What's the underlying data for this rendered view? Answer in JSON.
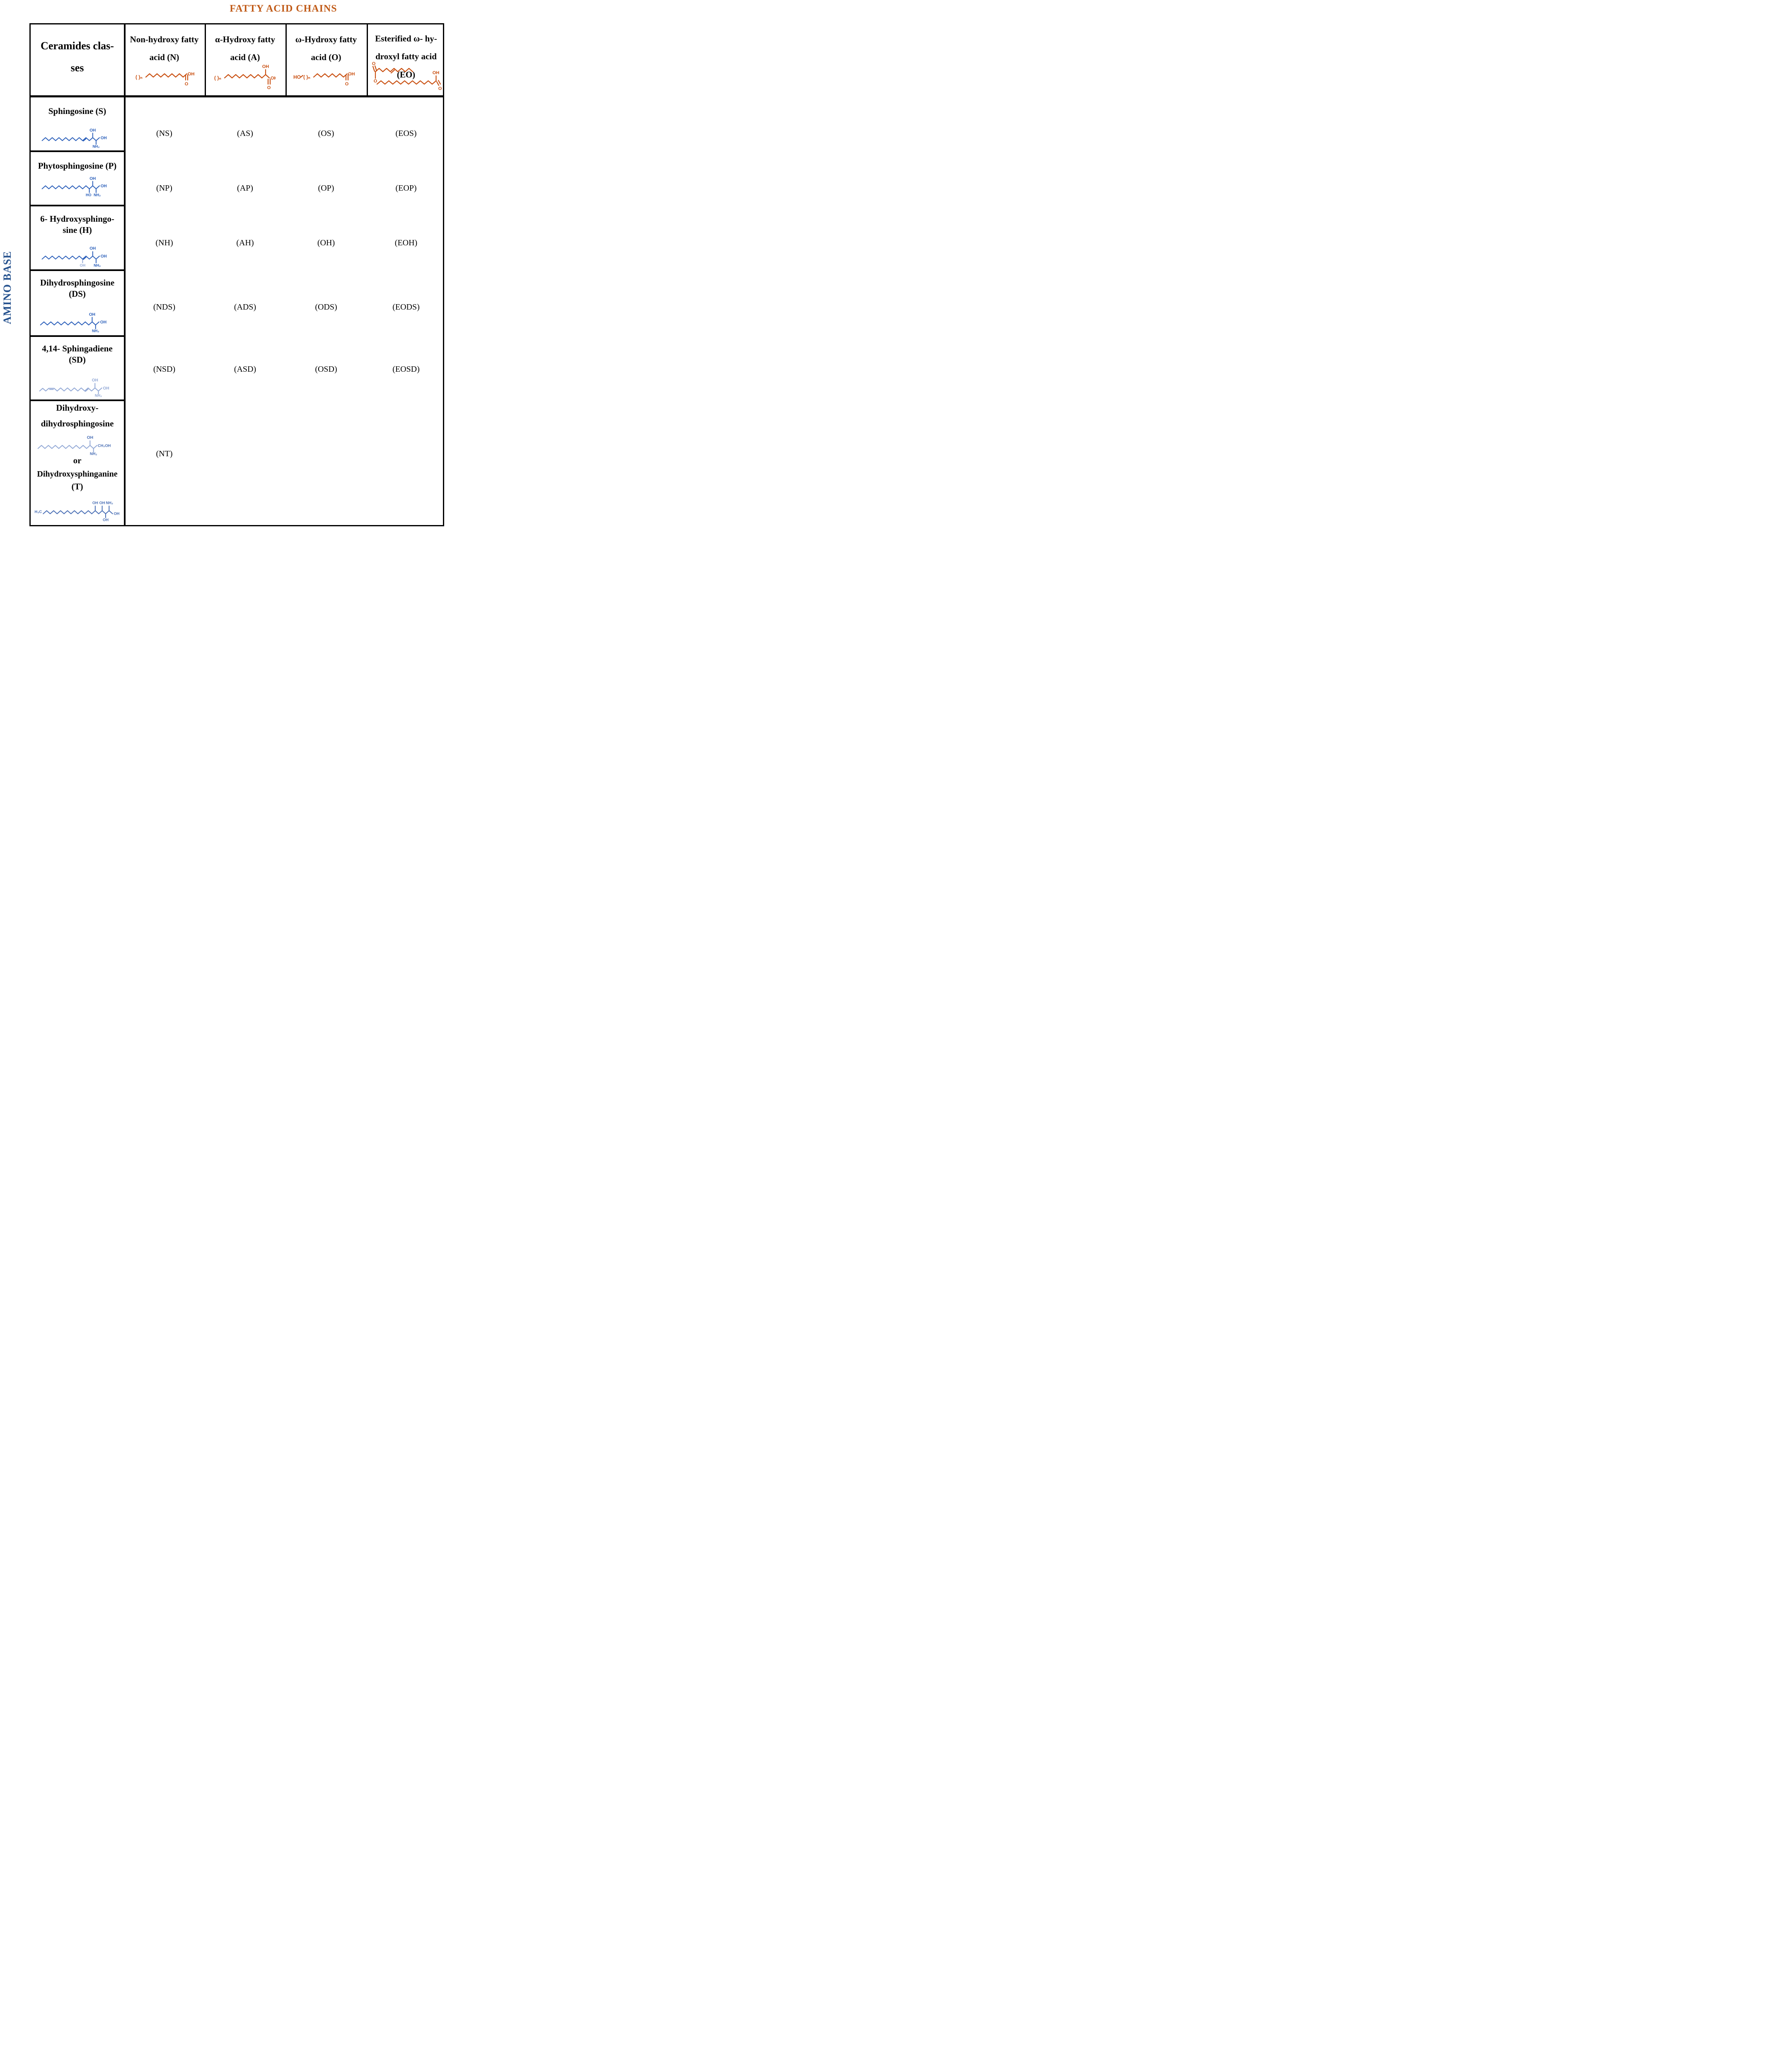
{
  "title": "FATTY ACID CHAINS",
  "side_label": "AMINO BASE",
  "glyphs": {
    "oh": "OH",
    "ho": "HO",
    "o": "O",
    "nh2": "NH₂",
    "ch2oh": "CH₂OH",
    "h3c": "H₃C",
    "paren_n": "( )ₙ"
  },
  "header": {
    "corner": "Ceramides clas-\nses",
    "columns": [
      {
        "label": "Non-hydroxy fatty\nacid (N)"
      },
      {
        "label": "α-Hydroxy fatty\nacid (A)"
      },
      {
        "label": "ω-Hydroxy fatty\nacid (O)"
      },
      {
        "label": "Esterified ω- hy-\ndroxyl fatty acid\n(EO)"
      }
    ]
  },
  "rows": [
    {
      "name": "Sphingosine (S)",
      "cells": [
        "(NS)",
        "(AS)",
        "(OS)",
        "(EOS)"
      ]
    },
    {
      "name": "Phytosphingosine (P)",
      "cells": [
        "(NP)",
        "(AP)",
        "(OP)",
        "(EOP)"
      ]
    },
    {
      "name": "6- Hydroxysphingo-\nsine (H)",
      "cells": [
        "(NH)",
        "(AH)",
        "(OH)",
        "(EOH)"
      ]
    },
    {
      "name": "Dihydrosphingosine\n(DS)",
      "cells": [
        "(NDS)",
        "(ADS)",
        "(ODS)",
        "(EODS)"
      ]
    },
    {
      "name": "4,14- Sphingadiene\n(SD)",
      "cells": [
        "(NSD)",
        "(ASD)",
        "(OSD)",
        "(EOSD)"
      ]
    },
    {
      "name_lines": [
        "Dihydroxy-",
        "dihydrosphingosine"
      ],
      "or_label": "or",
      "alt_name_lines": [
        "Dihydroxysphinganine",
        "(T)"
      ],
      "cells": [
        "(NT)"
      ]
    }
  ],
  "colors": {
    "title_orange": "#C05A17",
    "structure_orange": "#C94F10",
    "structure_blue": "#2B5FBA",
    "structure_light_blue": "#93A9D6",
    "structure_mid_blue": "#4A6FB5",
    "amino_base_blue": "#27538F",
    "border_black": "#000000"
  }
}
